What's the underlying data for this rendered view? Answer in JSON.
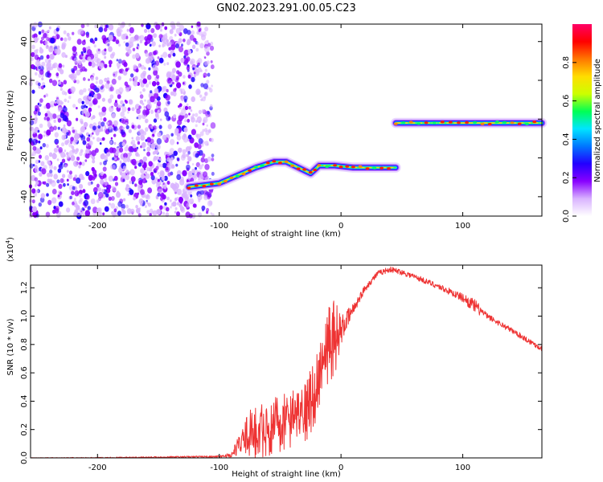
{
  "title": "GN02.2023.291.00.05.C23",
  "chart_data": [
    {
      "type": "heatmap",
      "title": "GN02.2023.291.00.05.C23",
      "xlabel": "Height of straight line (km)",
      "ylabel": "Frequency (Hz)",
      "xlim": [
        -255,
        165
      ],
      "ylim": [
        -50,
        49
      ],
      "x_ticks": [
        -200,
        -100,
        0,
        100
      ],
      "y_ticks": [
        -40,
        -20,
        0,
        20,
        40
      ],
      "colorbar": {
        "label": "Normalized spectral amplitude",
        "range": [
          0,
          1
        ],
        "ticks": [
          0.0,
          0.2,
          0.4,
          0.6,
          0.8
        ],
        "colors": [
          "#ffffff",
          "#d9b3ff",
          "#8800ff",
          "#2200ff",
          "#0077ff",
          "#00e5ff",
          "#00ff55",
          "#ccff00",
          "#ffdd00",
          "#ff7700",
          "#ff0000",
          "#ff0066"
        ]
      },
      "features": [
        {
          "name": "noise",
          "x_range": [
            -255,
            -105
          ],
          "freq_range": [
            -50,
            49
          ]
        },
        {
          "name": "ramp",
          "points": [
            [
              -125,
              -35
            ],
            [
              -100,
              -33
            ],
            [
              -85,
              -29
            ],
            [
              -70,
              -25
            ],
            [
              -55,
              -22
            ],
            [
              -45,
              -22
            ],
            [
              -35,
              -25
            ],
            [
              -25,
              -28
            ],
            [
              -18,
              -24
            ],
            [
              -5,
              -24
            ],
            [
              10,
              -25
            ],
            [
              45,
              -25
            ]
          ]
        },
        {
          "name": "upper",
          "points": [
            [
              45,
              -2
            ],
            [
              70,
              -2
            ],
            [
              90,
              -2
            ],
            [
              110,
              -2
            ],
            [
              165,
              -2
            ]
          ]
        }
      ]
    },
    {
      "type": "line",
      "xlabel": "Height of straight line (km)",
      "ylabel": "SNR (10 * v/v)",
      "y_multiplier": "(x10^4)",
      "y_multiplier_base": "(x10",
      "y_multiplier_exp": "4",
      "y_multiplier_close": ")",
      "xlim": [
        -255,
        165
      ],
      "ylim": [
        0,
        1.36
      ],
      "x_ticks": [
        -200,
        -100,
        0,
        100
      ],
      "y_ticks": [
        0.0,
        0.2,
        0.4,
        0.6,
        0.8,
        1.0,
        1.2
      ],
      "series": [
        {
          "color": "#ee3333",
          "x": [
            -255,
            -200,
            -150,
            -100,
            -90,
            -75,
            -60,
            -50,
            -40,
            -30,
            -20,
            -10,
            -5,
            0,
            10,
            20,
            30,
            40,
            50,
            60,
            80,
            100,
            110,
            120,
            140,
            165
          ],
          "y": [
            0.0,
            0.0,
            0.005,
            0.01,
            0.02,
            0.2,
            0.25,
            0.3,
            0.32,
            0.35,
            0.55,
            0.85,
            0.92,
            0.9,
            1.05,
            1.2,
            1.3,
            1.33,
            1.31,
            1.28,
            1.21,
            1.13,
            1.07,
            1.0,
            0.9,
            0.77
          ],
          "spread": [
            0.002,
            0.004,
            0.005,
            0.006,
            0.02,
            0.14,
            0.16,
            0.16,
            0.16,
            0.18,
            0.2,
            0.22,
            0.22,
            0.1,
            0.04,
            0.025,
            0.02,
            0.02,
            0.02,
            0.02,
            0.02,
            0.03,
            0.05,
            0.02,
            0.02,
            0.02
          ]
        }
      ]
    }
  ]
}
